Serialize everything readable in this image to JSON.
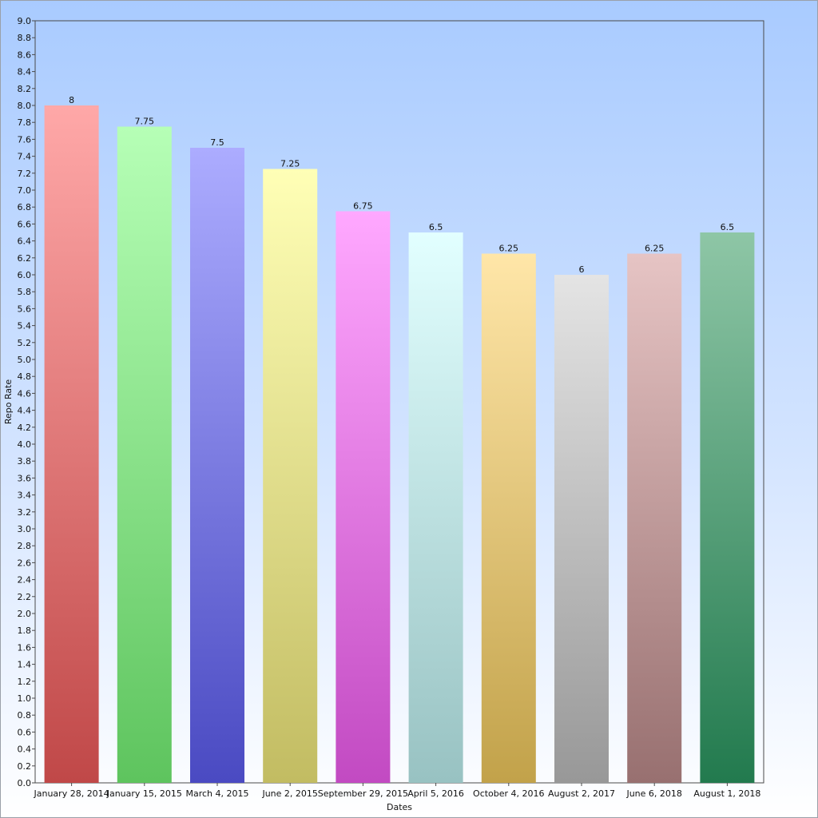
{
  "chart_data": {
    "type": "bar",
    "title": "",
    "xlabel": "Dates",
    "ylabel": "Repo Rate",
    "ylim": [
      0,
      9
    ],
    "ytick_step": 0.2,
    "grid": false,
    "categories": [
      "January 28, 2014",
      "January 15, 2015",
      "March 4, 2015",
      "June 2, 2015",
      "September 29, 2015",
      "April 5, 2016",
      "October 4, 2016",
      "August 2, 2017",
      "June 6, 2018",
      "August 1, 2018"
    ],
    "values": [
      8,
      7.75,
      7.5,
      7.25,
      6.75,
      6.5,
      6.25,
      6,
      6.25,
      6.5
    ],
    "data_labels": [
      "8",
      "7.75",
      "7.5",
      "7.25",
      "6.75",
      "6.5",
      "6.25",
      "6",
      "6.25",
      "6.5"
    ],
    "bar_colors": [
      [
        "#ffa8a8",
        "#c04848"
      ],
      [
        "#b6ffb6",
        "#5ec45e"
      ],
      [
        "#acacff",
        "#4a4ac2"
      ],
      [
        "#ffffb6",
        "#c2bc62"
      ],
      [
        "#ffa8ff",
        "#c24ac2"
      ],
      [
        "#e2ffff",
        "#98c2c2"
      ],
      [
        "#ffe6a8",
        "#c2a24a"
      ],
      [
        "#e4e4e4",
        "#989898"
      ],
      [
        "#e6c4c4",
        "#987070"
      ],
      [
        "#8ec6a6",
        "#227a4e"
      ]
    ],
    "background_gradient": [
      "#a9cbff",
      "#ffffff"
    ]
  }
}
